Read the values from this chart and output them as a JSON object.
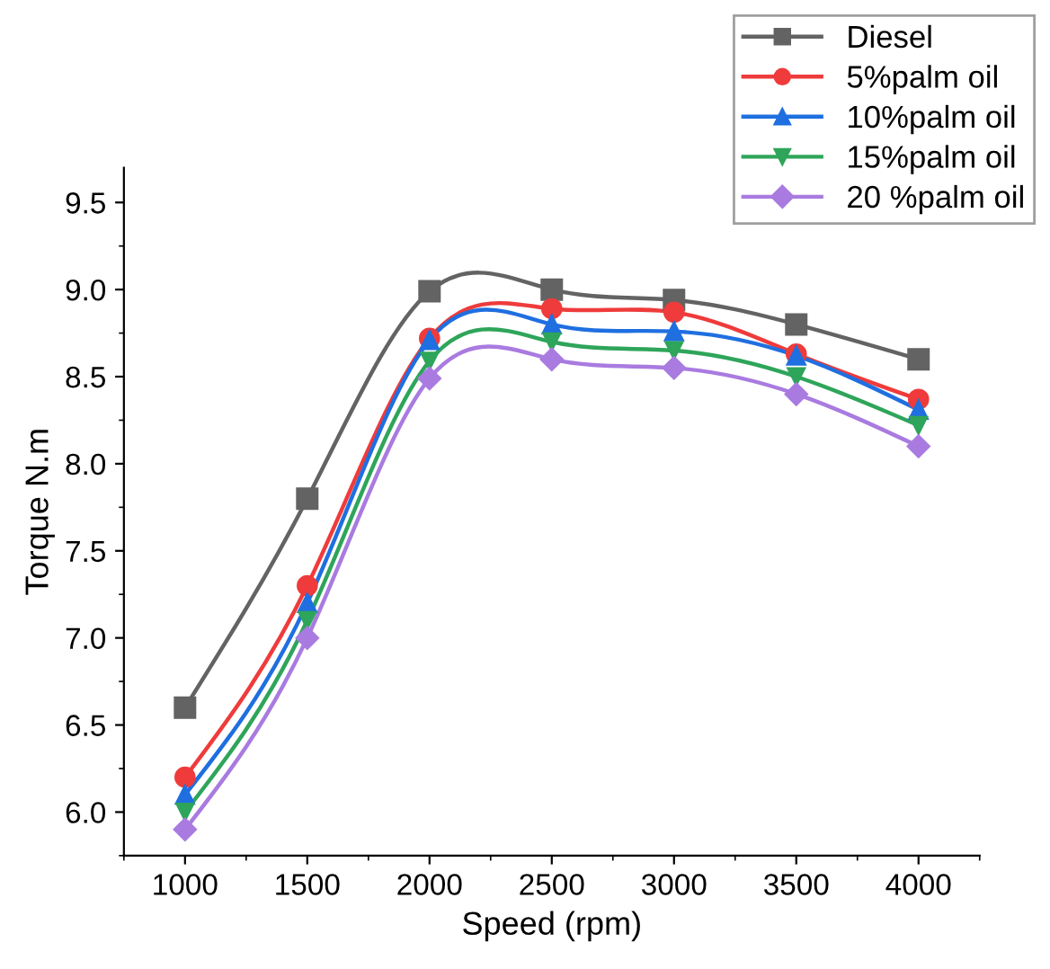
{
  "chart_data": {
    "type": "line",
    "xlabel": "Speed (rpm)",
    "ylabel": "Torque N.m",
    "x": [
      1000,
      1500,
      2000,
      2500,
      3000,
      3500,
      4000
    ],
    "series": [
      {
        "name": "Diesel",
        "color": "#636363",
        "marker": "square",
        "values": [
          6.6,
          7.8,
          8.99,
          9.0,
          8.94,
          8.8,
          8.6
        ]
      },
      {
        "name": "5%palm oil",
        "color": "#ef3b3b",
        "marker": "circle",
        "values": [
          6.2,
          7.3,
          8.72,
          8.89,
          8.87,
          8.63,
          8.37
        ]
      },
      {
        "name": "10%palm oil",
        "color": "#1f6fe0",
        "marker": "triangle",
        "values": [
          6.1,
          7.2,
          8.71,
          8.8,
          8.76,
          8.62,
          8.31
        ]
      },
      {
        "name": "15%palm oil",
        "color": "#2ea55a",
        "marker": "triangle_down",
        "values": [
          6.0,
          7.1,
          8.59,
          8.7,
          8.65,
          8.5,
          8.22
        ]
      },
      {
        "name": "20 %palm oil",
        "color": "#a97be0",
        "marker": "diamond",
        "values": [
          5.9,
          7.0,
          8.49,
          8.6,
          8.55,
          8.4,
          8.1
        ]
      }
    ],
    "xlim": [
      750,
      4250
    ],
    "ylim": [
      5.75,
      9.7
    ],
    "xticks": [
      1000,
      1500,
      2000,
      2500,
      3000,
      3500,
      4000
    ],
    "yticks": [
      {
        "value": 6.0,
        "label": "6.0"
      },
      {
        "value": 6.5,
        "label": "6.5"
      },
      {
        "value": 7.0,
        "label": "7.0"
      },
      {
        "value": 7.5,
        "label": "7.5"
      },
      {
        "value": 8.0,
        "label": "8.0"
      },
      {
        "value": 8.5,
        "label": "8.5"
      },
      {
        "value": 9.0,
        "label": "9.0"
      },
      {
        "value": 9.5,
        "label": "9.5"
      }
    ],
    "grid": false,
    "legend": "top right",
    "line_style": "solid"
  }
}
